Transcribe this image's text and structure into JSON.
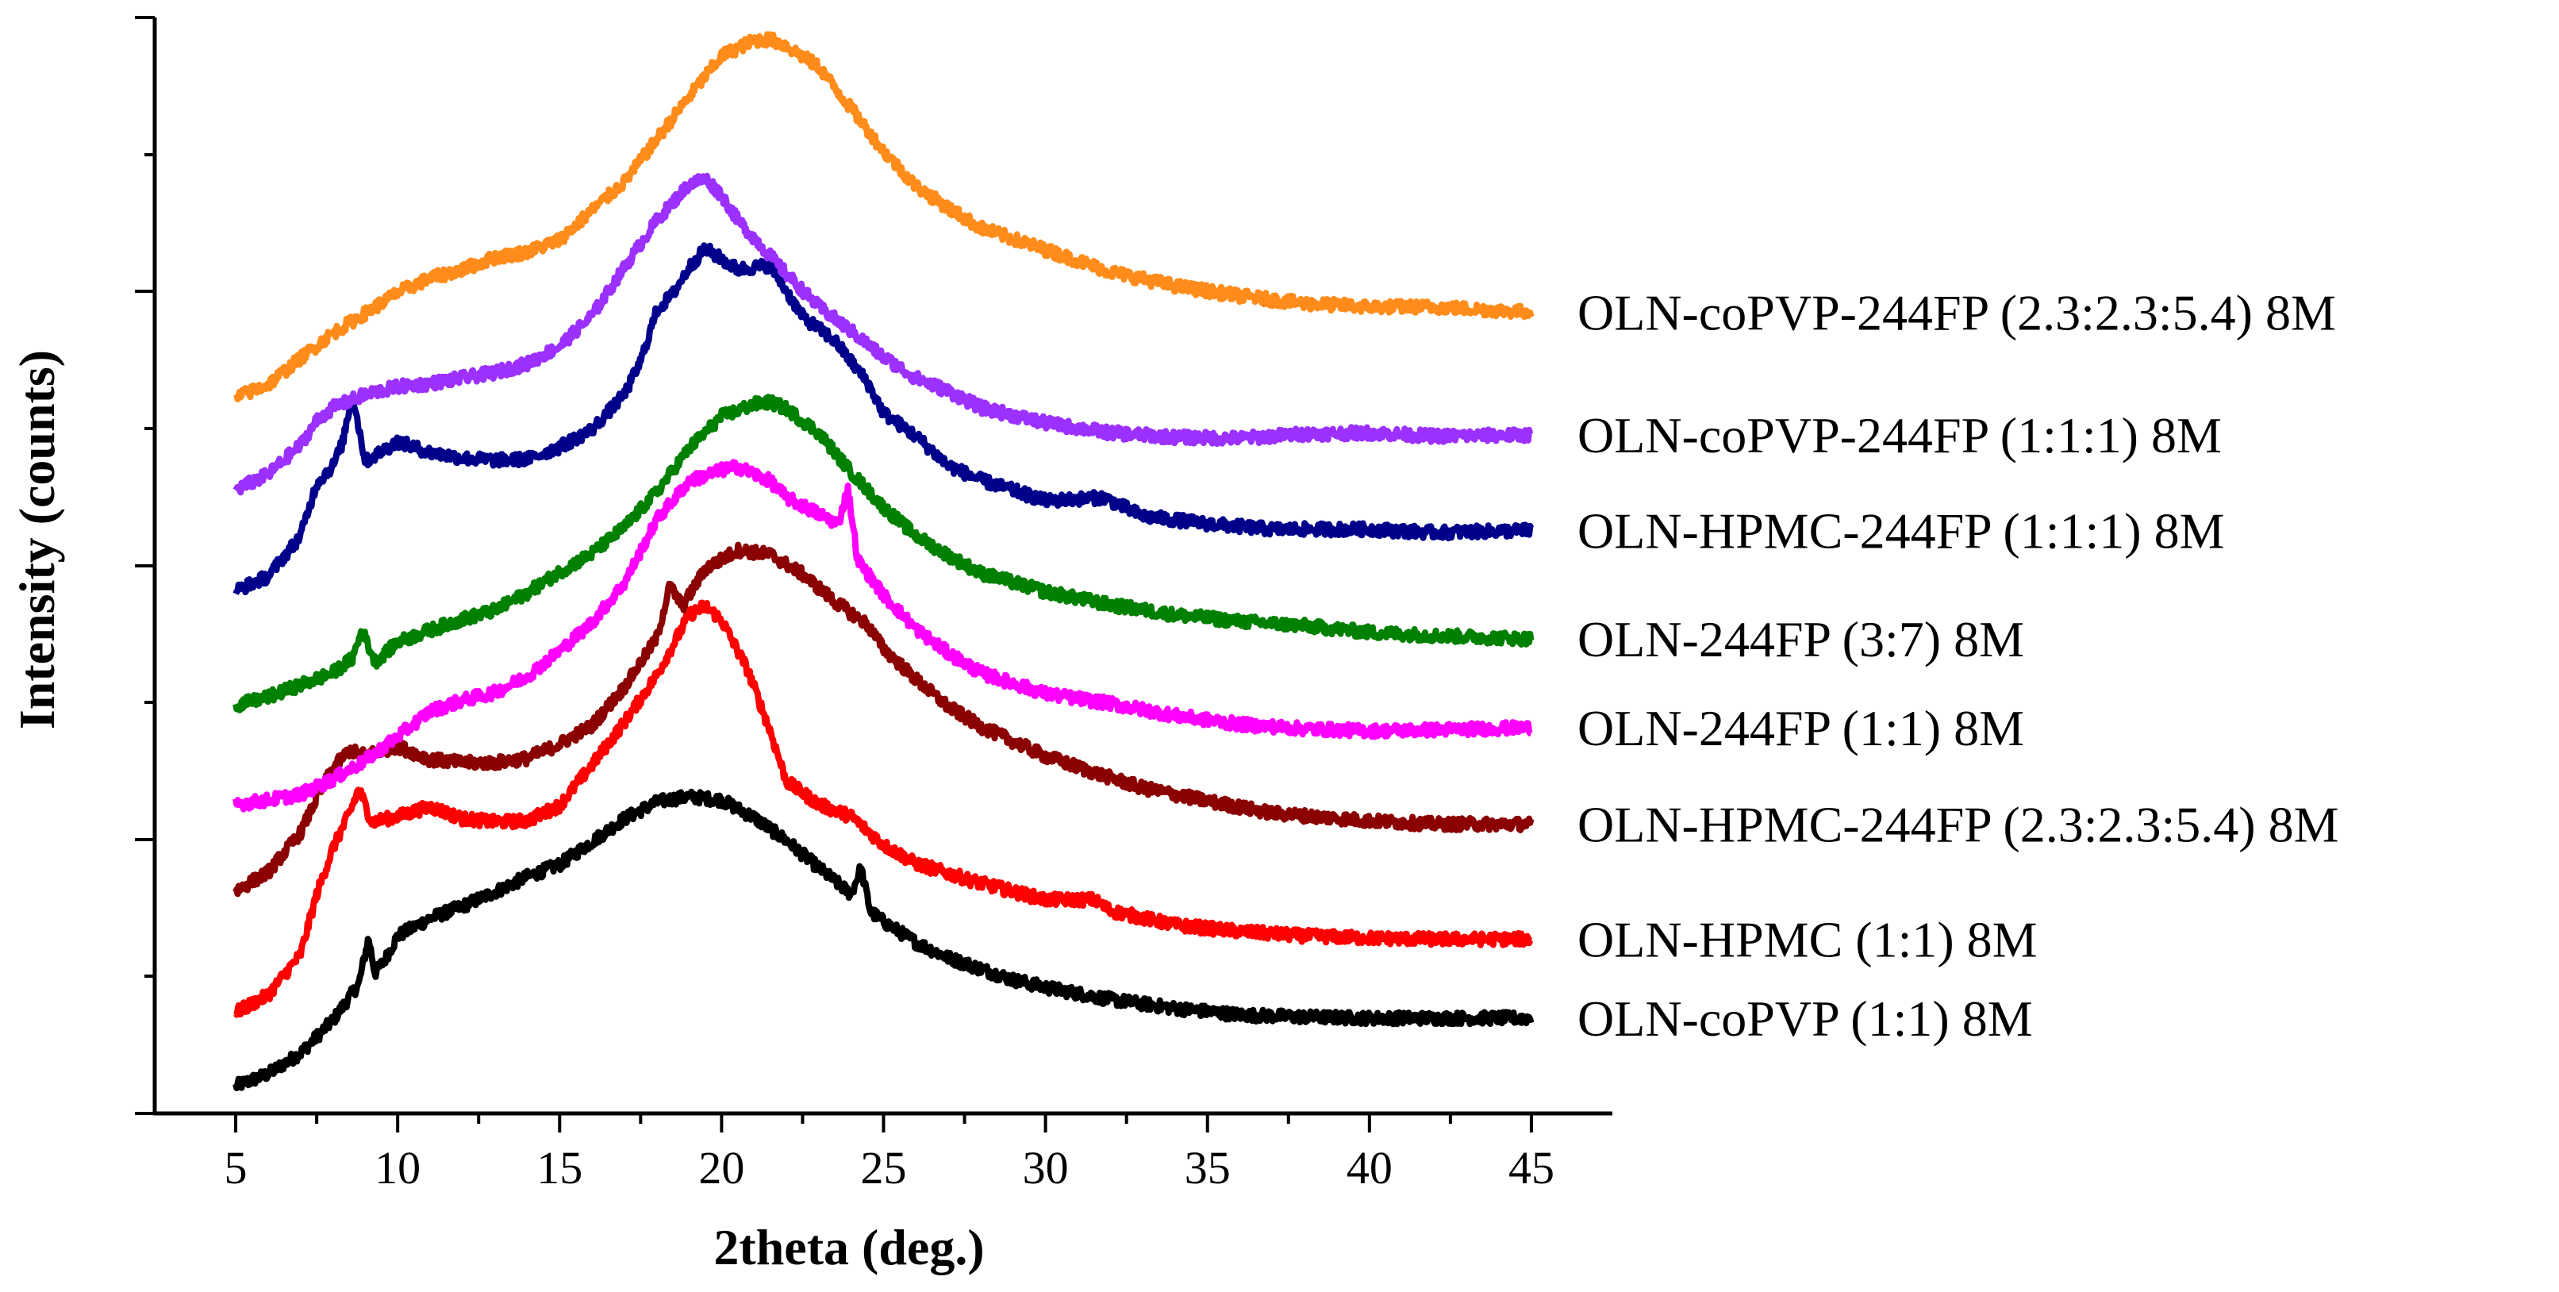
{
  "chart_data": {
    "type": "line",
    "title": "",
    "xlabel": "2theta (deg.)",
    "ylabel": "Intensity (counts)",
    "xlim": [
      2.5,
      47.5
    ],
    "ylim": [
      0,
      100
    ],
    "x_ticks": [
      5,
      10,
      15,
      20,
      25,
      30,
      35,
      40,
      45
    ],
    "x_tick_labels": [
      "5",
      "10",
      "15",
      "20",
      "25",
      "30",
      "35",
      "40",
      "45"
    ],
    "y_tick_labels_shown": false,
    "grid": false,
    "legend_placement": "right",
    "series": [
      {
        "name": "OLN-coPVP (1:1) 8M",
        "color": "#000000",
        "x": [
          5,
          6,
          7,
          8,
          8.8,
          9.1,
          9.3,
          9.6,
          10,
          11,
          12,
          13,
          14,
          15,
          16,
          17,
          18,
          18.5,
          19,
          20,
          21,
          22,
          23,
          24,
          24.3,
          24.6,
          25,
          26,
          27,
          28,
          29,
          30,
          32,
          34,
          36,
          38,
          40,
          42,
          45
        ],
        "y": [
          2.5,
          3.6,
          5.5,
          8.5,
          11.8,
          16.0,
          12.8,
          14.0,
          16.2,
          17.8,
          18.9,
          20.2,
          21.6,
          22.7,
          24.8,
          26.9,
          28.4,
          28.7,
          28.9,
          28.6,
          27.0,
          24.9,
          22.4,
          20.0,
          22.4,
          18.4,
          17.5,
          15.6,
          14.2,
          13.2,
          12.2,
          11.5,
          10.4,
          9.6,
          9.0,
          8.8,
          8.7,
          8.7,
          8.7
        ]
      },
      {
        "name": "OLN-HPMC (1:1) 8M",
        "color": "#ff0000",
        "x": [
          5,
          6,
          7,
          7.5,
          8,
          8.5,
          8.8,
          9.2,
          10,
          11,
          12,
          13,
          14,
          15,
          16,
          17,
          18,
          19,
          19.5,
          20,
          20.8,
          21.5,
          22,
          23,
          24,
          25,
          26,
          28,
          30,
          31.5,
          32,
          34,
          36,
          38,
          40,
          42,
          45
        ],
        "y": [
          9.2,
          10.8,
          14.5,
          20.0,
          24.2,
          27.3,
          29.6,
          26.6,
          27.1,
          28.0,
          26.9,
          26.6,
          26.7,
          28.1,
          31.8,
          35.7,
          40.0,
          45.5,
          46.3,
          45.0,
          40.5,
          34.9,
          30.3,
          28.2,
          27.1,
          24.5,
          22.8,
          21.0,
          19.5,
          19.5,
          18.5,
          17.2,
          16.6,
          16.2,
          16.0,
          15.9,
          15.9
        ]
      },
      {
        "name": "OLN-HPMC-244FP (2.3:2.3:5.4) 8M",
        "color": "#8b0000",
        "x": [
          5,
          6,
          7,
          7.5,
          8,
          8.5,
          9,
          10,
          11,
          12,
          13,
          14,
          15,
          16,
          17,
          18,
          18.4,
          18.8,
          19.5,
          20.5,
          21.5,
          22.5,
          23.5,
          24.5,
          25,
          26,
          27,
          28,
          30,
          31.5,
          33,
          35,
          37,
          40,
          42,
          45
        ],
        "y": [
          20.3,
          22.0,
          25.6,
          28.8,
          31.5,
          33.1,
          32.7,
          33.5,
          32.3,
          32.0,
          32.0,
          32.4,
          33.7,
          35.4,
          38.9,
          43.4,
          48.1,
          46.3,
          49.7,
          51.4,
          51.0,
          49.2,
          46.7,
          44.6,
          42.4,
          39.6,
          37.1,
          35.3,
          32.6,
          31.1,
          29.7,
          28.5,
          27.4,
          26.7,
          26.4,
          26.4
        ]
      },
      {
        "name": "OLN-244FP (1:1) 8M",
        "color": "#ff00ff",
        "x": [
          5,
          6,
          7,
          8,
          9,
          10,
          11,
          12,
          13,
          14,
          15,
          16,
          17,
          18,
          19,
          20,
          20.5,
          21.5,
          22,
          23,
          23.6,
          23.9,
          24.2,
          25,
          26,
          27,
          28,
          30,
          32,
          34,
          36,
          38,
          40,
          42,
          45
        ],
        "y": [
          28.2,
          28.6,
          29.1,
          30.5,
          32.2,
          34.4,
          36.7,
          37.7,
          38.4,
          39.9,
          42.2,
          44.8,
          48.4,
          54.2,
          57.7,
          58.7,
          59.0,
          57.7,
          56.2,
          54.7,
          53.8,
          57.0,
          50.5,
          47.3,
          44.2,
          42.0,
          40.2,
          38.3,
          37.4,
          36.3,
          35.5,
          35.1,
          34.9,
          35.0,
          35.2
        ]
      },
      {
        "name": "OLN-244FP (3:7) 8M",
        "color": "#008000",
        "x": [
          5,
          6,
          7,
          8,
          8.6,
          8.9,
          9.3,
          10,
          11,
          12,
          13,
          14,
          15,
          16,
          17,
          18,
          19,
          20,
          21,
          21.5,
          22,
          23,
          24,
          25,
          26,
          27,
          28,
          30,
          32,
          34,
          36,
          38,
          40,
          42,
          45
        ],
        "y": [
          37.2,
          38.0,
          39.1,
          40.2,
          41.5,
          44.1,
          41.2,
          43.0,
          44.1,
          45.1,
          45.9,
          47.5,
          49.4,
          51.1,
          53.5,
          56.7,
          60.7,
          63.6,
          64.7,
          64.9,
          64.3,
          62.1,
          58.5,
          55.3,
          52.7,
          50.9,
          49.3,
          47.6,
          46.4,
          45.5,
          44.9,
          44.5,
          43.9,
          43.6,
          43.3
        ]
      },
      {
        "name": "OLN-HPMC-244FP (1:1:1) 8M",
        "color": "#00008b",
        "x": [
          5,
          6,
          7,
          7.5,
          8,
          8.3,
          8.6,
          9,
          10,
          11,
          12,
          13,
          14,
          15,
          16,
          17,
          17.5,
          18,
          18.5,
          19,
          19.5,
          20.5,
          21.5,
          22.5,
          23.5,
          24.5,
          25,
          26,
          27,
          28,
          30,
          31.8,
          33,
          35,
          37,
          40,
          42,
          45
        ],
        "y": [
          47.7,
          49.0,
          52.7,
          57.5,
          59.1,
          61.2,
          65.7,
          59.5,
          61.3,
          60.3,
          59.8,
          59.6,
          59.7,
          60.8,
          62.4,
          65.6,
          68.6,
          73.3,
          74.8,
          77.2,
          78.9,
          77.0,
          77.4,
          72.7,
          70.5,
          66.7,
          63.9,
          61.8,
          59.1,
          57.8,
          55.9,
          56.2,
          54.5,
          53.8,
          53.3,
          53.3,
          53.0,
          53.2
        ]
      },
      {
        "name": "OLN-coPVP-244FP (1:1:1) 8M",
        "color": "#9b30ff",
        "x": [
          5,
          6,
          7,
          7.5,
          8,
          9,
          10,
          11,
          12,
          13,
          14,
          15,
          16,
          17,
          18,
          19,
          19.5,
          20,
          20.5,
          21,
          22,
          23,
          24,
          25,
          26,
          27,
          28,
          30,
          32,
          34,
          36,
          38,
          40,
          42,
          45
        ],
        "y": [
          56.9,
          58.3,
          61.0,
          63.2,
          64.4,
          65.6,
          66.3,
          66.6,
          67.1,
          67.6,
          68.4,
          70.0,
          72.8,
          77.2,
          81.5,
          84.8,
          85.3,
          83.8,
          81.5,
          79.9,
          76.6,
          73.6,
          71.4,
          69.0,
          67.1,
          65.9,
          64.4,
          63.0,
          62.1,
          61.7,
          61.6,
          62.0,
          62.1,
          61.8,
          61.9
        ]
      },
      {
        "name": "OLN-coPVP-244FP (2.3:2.3:5.4) 8M",
        "color": "#ff8c1a",
        "x": [
          5,
          6,
          7,
          8,
          9,
          10,
          11,
          12,
          13,
          14,
          15,
          16,
          17,
          18,
          19,
          20,
          21,
          21.5,
          22,
          23,
          24,
          25,
          26,
          27,
          28,
          30,
          32,
          34,
          36,
          38,
          40,
          42,
          45
        ],
        "y": [
          65.3,
          66.5,
          68.9,
          71.2,
          73.0,
          74.9,
          76.2,
          77.0,
          78.1,
          78.6,
          79.7,
          82.4,
          85.0,
          88.9,
          92.8,
          96.5,
          97.9,
          98.0,
          97.4,
          95.5,
          91.7,
          87.8,
          84.6,
          82.6,
          80.8,
          78.8,
          76.8,
          75.5,
          74.6,
          73.9,
          73.6,
          73.6,
          73.1
        ]
      }
    ]
  }
}
